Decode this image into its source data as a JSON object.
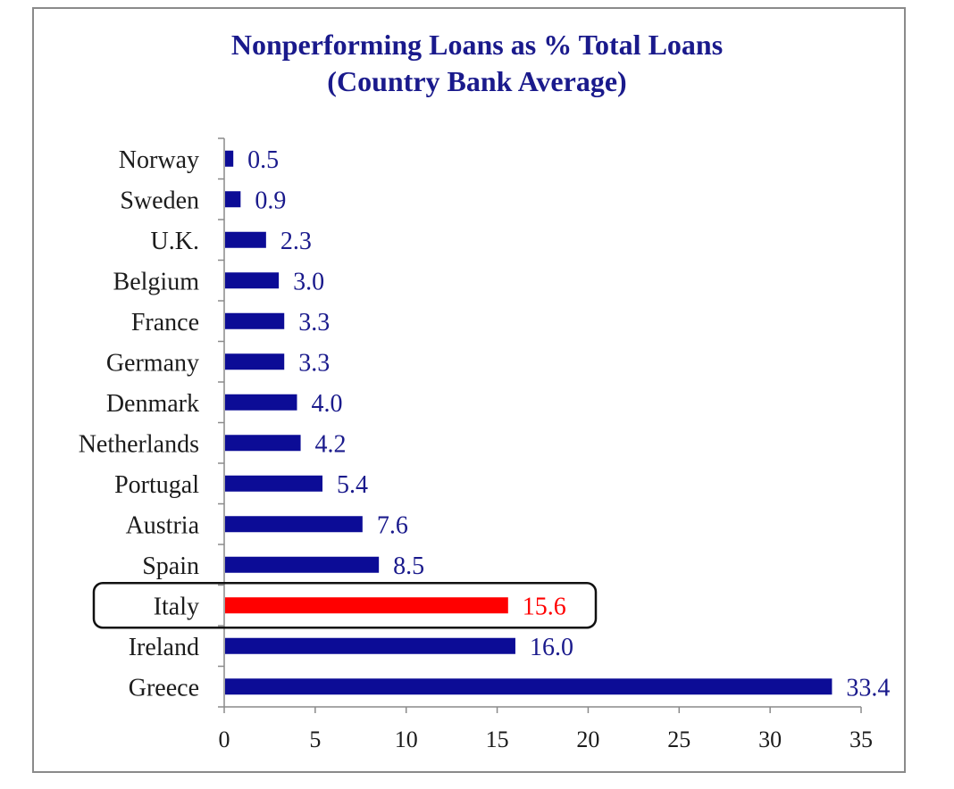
{
  "chart_data": {
    "type": "bar",
    "orientation": "horizontal",
    "title": "Nonperforming Loans as % Total Loans",
    "subtitle": "(Country Bank Average)",
    "categories": [
      "Norway",
      "Sweden",
      "U.K.",
      "Belgium",
      "France",
      "Germany",
      "Denmark",
      "Netherlands",
      "Portugal",
      "Austria",
      "Spain",
      "Italy",
      "Ireland",
      "Greece"
    ],
    "values": [
      0.5,
      0.9,
      2.3,
      3.0,
      3.3,
      3.3,
      4.0,
      4.2,
      5.4,
      7.6,
      8.5,
      15.6,
      16.0,
      33.4
    ],
    "value_labels": [
      "0.5",
      "0.9",
      "2.3",
      "3.0",
      "3.3",
      "3.3",
      "4.0",
      "4.2",
      "5.4",
      "7.6",
      "8.5",
      "15.6",
      "16.0",
      "33.4"
    ],
    "x_ticks": [
      "0",
      "5",
      "10",
      "15",
      "20",
      "25",
      "30",
      "35"
    ],
    "xlim": [
      0,
      35
    ],
    "grid": false,
    "legend": "none",
    "highlight_category": "Italy",
    "colors": {
      "bar": "#0c0c96",
      "highlight": "#ff0000",
      "label": "#1a1a8c",
      "highlight_label": "#ff0000",
      "title": "#1a1a8c"
    }
  }
}
